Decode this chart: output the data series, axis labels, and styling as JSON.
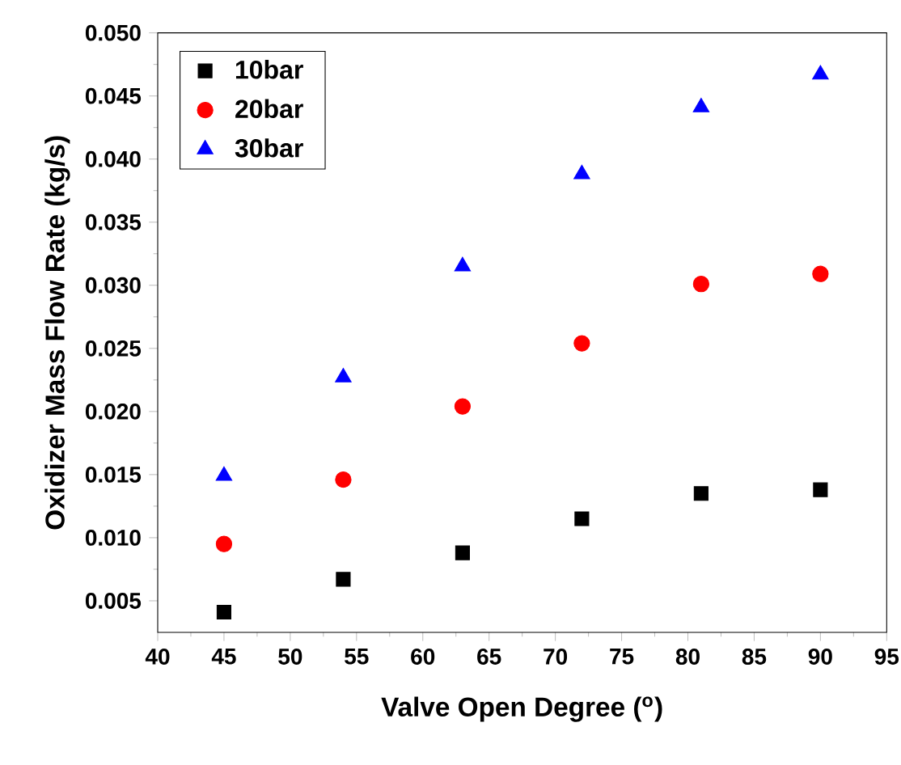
{
  "chart_data": {
    "type": "scatter",
    "xlabel": "Valve Open Degree ($^{o}$)",
    "ylabel": "Oxidizer Mass Flow Rate (kg/s)",
    "x": [
      45,
      54,
      63,
      72,
      81,
      90
    ],
    "series": [
      {
        "name": "10bar",
        "color": "#000000",
        "marker": "square",
        "values": [
          0.0041,
          0.0067,
          0.0088,
          0.0115,
          0.0135,
          0.0138
        ]
      },
      {
        "name": "20bar",
        "color": "#ff0000",
        "marker": "circle",
        "values": [
          0.0095,
          0.0146,
          0.0204,
          0.0254,
          0.0301,
          0.0309
        ]
      },
      {
        "name": "30bar",
        "color": "#0000ff",
        "marker": "triangle",
        "values": [
          0.0149,
          0.0227,
          0.0315,
          0.0388,
          0.0441,
          0.0467
        ]
      }
    ],
    "xlim": [
      40,
      95
    ],
    "ylim": [
      0.0025,
      0.05
    ],
    "xticks": [
      40,
      45,
      50,
      55,
      60,
      65,
      70,
      75,
      80,
      85,
      90,
      95
    ],
    "yticks": [
      0.005,
      {
        "value": 0.01,
        "label": "0.010"
      },
      0.015,
      {
        "value": 0.02,
        "label": "0.020"
      },
      0.025,
      {
        "value": 0.03,
        "label": "0.030"
      },
      0.035,
      {
        "value": 0.04,
        "label": "0.040"
      },
      0.045,
      {
        "value": 0.05,
        "label": "0.050"
      }
    ],
    "legend": "top left",
    "grid": false
  }
}
